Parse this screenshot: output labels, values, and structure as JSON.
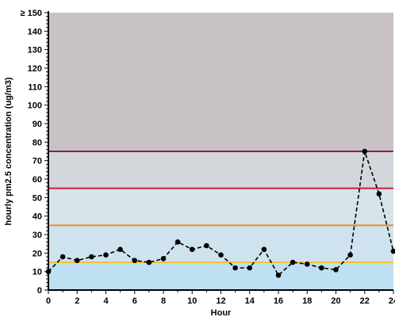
{
  "chart_data": {
    "type": "line",
    "xlabel": "Hour",
    "ylabel": "hourly pm2.5 concentration (ug/m3)",
    "xlim": [
      0,
      24
    ],
    "ylim": [
      0,
      150
    ],
    "x_ticks": [
      0,
      2,
      4,
      6,
      8,
      10,
      12,
      14,
      16,
      18,
      20,
      22,
      24
    ],
    "x_tick_labels": [
      "0",
      "2",
      "4",
      "6",
      "8",
      "10",
      "12",
      "14",
      "16",
      "18",
      "20",
      "22",
      "24"
    ],
    "y_ticks": [
      0,
      10,
      20,
      30,
      40,
      50,
      60,
      70,
      80,
      90,
      100,
      110,
      120,
      130,
      140,
      150
    ],
    "y_tick_labels": [
      "0",
      "10",
      "20",
      "30",
      "40",
      "50",
      "60",
      "70",
      "80",
      "90",
      "100",
      "110",
      "120",
      "130",
      "140",
      "≥ 150"
    ],
    "grid": false,
    "background_bands": [
      {
        "from": 0,
        "to": 15,
        "color": "#bfe0f2"
      },
      {
        "from": 15,
        "to": 35,
        "color": "#cfe3ee"
      },
      {
        "from": 35,
        "to": 55,
        "color": "#d6e4ea"
      },
      {
        "from": 55,
        "to": 75,
        "color": "#d3d6db"
      },
      {
        "from": 75,
        "to": 150,
        "color": "#c8c2c4"
      }
    ],
    "threshold_lines": [
      {
        "value": 15,
        "color": "#f2c12e"
      },
      {
        "value": 35,
        "color": "#f08a2a"
      },
      {
        "value": 55,
        "color": "#cc1e3c"
      },
      {
        "value": 75,
        "color": "#8c1a5e"
      }
    ],
    "series": [
      {
        "color": "#000000",
        "line_style": "dashed",
        "marker": "circle",
        "x": [
          0,
          1,
          2,
          3,
          4,
          5,
          6,
          7,
          8,
          9,
          10,
          11,
          12,
          13,
          14,
          15,
          16,
          17,
          18,
          19,
          20,
          21,
          22,
          23,
          24
        ],
        "y": [
          10,
          18,
          16,
          18,
          19,
          22,
          16,
          15,
          17,
          26,
          22,
          24,
          19,
          12,
          12,
          22,
          8,
          15,
          14,
          12,
          11,
          19,
          75,
          52,
          21
        ]
      }
    ]
  }
}
